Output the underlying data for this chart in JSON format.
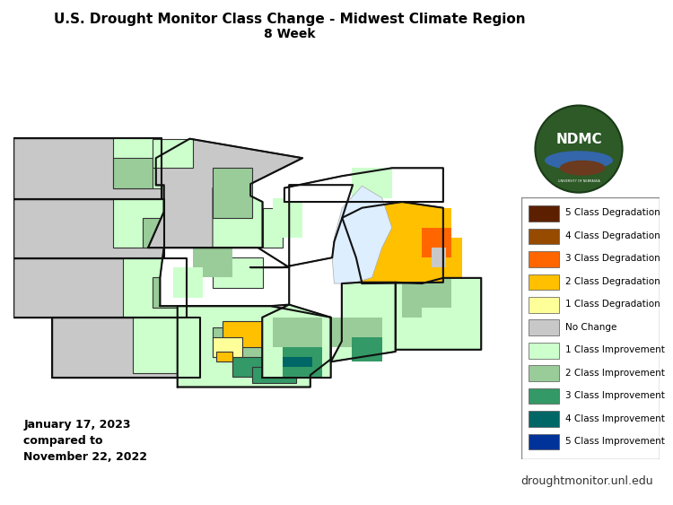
{
  "title_line1": "U.S. Drought Monitor Class Change - Midwest Climate Region",
  "title_line2": "8 Week",
  "date_text": "January 17, 2023\ncompared to\nNovember 22, 2022",
  "website_text": "droughtmonitor.unl.edu",
  "background_color": "#ffffff",
  "legend_items": [
    {
      "label": "5 Class Degradation",
      "color": "#5c2000"
    },
    {
      "label": "4 Class Degradation",
      "color": "#964b00"
    },
    {
      "label": "3 Class Degradation",
      "color": "#ff6600"
    },
    {
      "label": "2 Class Degradation",
      "color": "#ffc000"
    },
    {
      "label": "1 Class Degradation",
      "color": "#ffff99"
    },
    {
      "label": "No Change",
      "color": "#c8c8c8"
    },
    {
      "label": "1 Class Improvement",
      "color": "#ccffcc"
    },
    {
      "label": "2 Class Improvement",
      "color": "#99cc99"
    },
    {
      "label": "3 Class Improvement",
      "color": "#339966"
    },
    {
      "label": "4 Class Improvement",
      "color": "#006666"
    },
    {
      "label": "5 Class Improvement",
      "color": "#003399"
    }
  ],
  "figsize": [
    7.5,
    5.63
  ],
  "dpi": 100,
  "title_fontsize": 11,
  "subtitle_fontsize": 10,
  "legend_fontsize": 8,
  "date_fontsize": 9,
  "website_fontsize": 9
}
